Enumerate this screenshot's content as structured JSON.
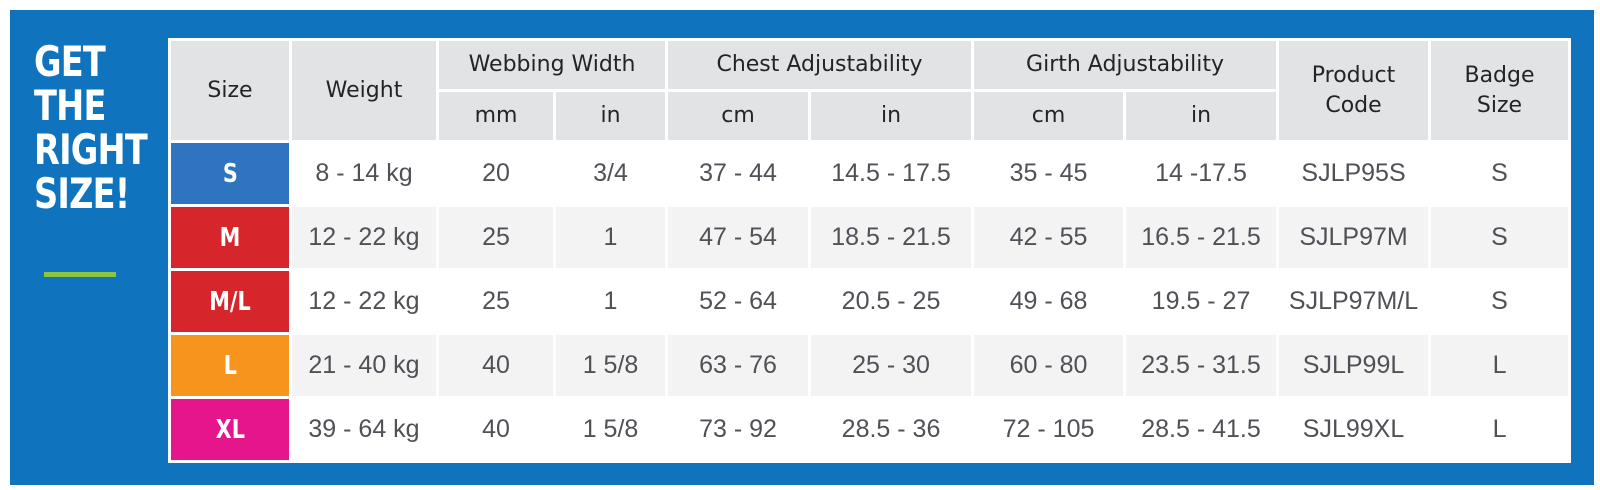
{
  "headline": [
    "GET",
    "THE",
    "RIGHT",
    "SIZE!"
  ],
  "colors": {
    "frame": "#0f74bd",
    "accent_rule": "#8dc63f",
    "header_bg": "#e2e3e5"
  },
  "table": {
    "headers": {
      "size": "Size",
      "weight": "Weight",
      "webbing_width": "Webbing Width",
      "chest_adjustability": "Chest Adjustability",
      "girth_adjustability": "Girth Adjustability",
      "product_code_line1": "Product",
      "product_code_line2": "Code",
      "badge_size_line1": "Badge",
      "badge_size_line2": "Size",
      "units": [
        "mm",
        "in",
        "cm",
        "in",
        "cm",
        "in"
      ]
    },
    "rows": [
      {
        "size": "S",
        "color": "#2f74be",
        "weight": "8 - 14 kg",
        "webbing_mm": "20",
        "webbing_in": "3/4",
        "chest_cm": "37 - 44",
        "chest_in": "14.5 - 17.5",
        "girth_cm": "35 - 45",
        "girth_in": "14 -17.5",
        "code": "SJLP95S",
        "badge": "S"
      },
      {
        "size": "M",
        "color": "#d7262b",
        "weight": "12 - 22  kg",
        "webbing_mm": "25",
        "webbing_in": "1",
        "chest_cm": "47 - 54",
        "chest_in": "18.5 - 21.5",
        "girth_cm": "42 - 55",
        "girth_in": "16.5 - 21.5",
        "code": "SJLP97M",
        "badge": "S"
      },
      {
        "size": "M/L",
        "color": "#d7262b",
        "weight": "12 - 22  kg",
        "webbing_mm": "25",
        "webbing_in": "1",
        "chest_cm": "52 - 64",
        "chest_in": "20.5 - 25",
        "girth_cm": "49 - 68",
        "girth_in": "19.5 - 27",
        "code": "SJLP97M/L",
        "badge": "S"
      },
      {
        "size": "L",
        "color": "#f7941d",
        "weight": "21 - 40 kg",
        "webbing_mm": "40",
        "webbing_in": "1 5/8",
        "chest_cm": "63 - 76",
        "chest_in": "25 - 30",
        "girth_cm": "60 - 80",
        "girth_in": "23.5 - 31.5",
        "code": "SJLP99L",
        "badge": "L"
      },
      {
        "size": "XL",
        "color": "#e5168b",
        "weight": "39 - 64 kg",
        "webbing_mm": "40",
        "webbing_in": "1 5/8",
        "chest_cm": "73 - 92",
        "chest_in": "28.5 - 36",
        "girth_cm": "72 - 105",
        "girth_in": "28.5 - 41.5",
        "code": "SJL99XL",
        "badge": "L"
      }
    ]
  }
}
